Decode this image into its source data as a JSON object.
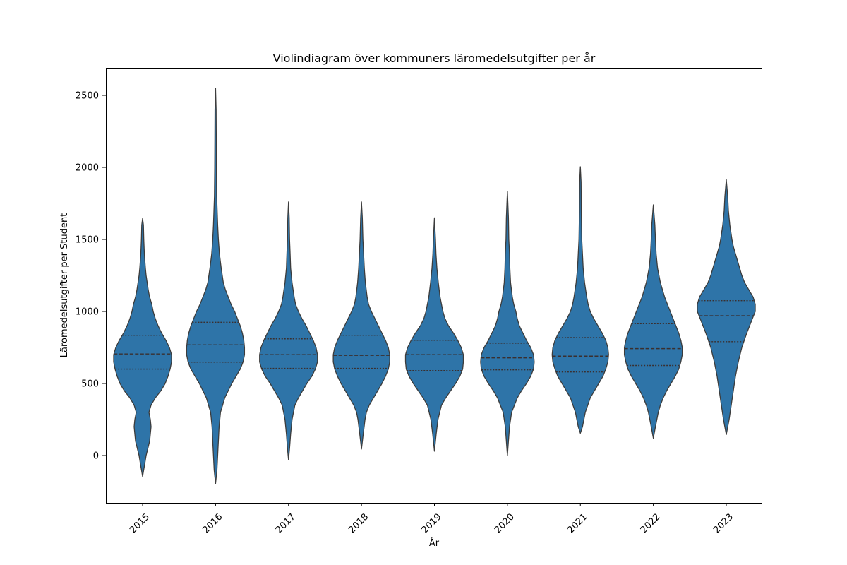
{
  "chart_data": {
    "type": "violin",
    "title": "Violindiagram över kommuners läromedelsutgifter per år",
    "xlabel": "År",
    "ylabel": "Läromedelsutgifter per Student",
    "ylim": [
      -330,
      2690
    ],
    "yticks": [
      "0",
      "500",
      "1000",
      "1500",
      "2000",
      "2500"
    ],
    "ytick_values": [
      0,
      500,
      1000,
      1500,
      2000,
      2500
    ],
    "color": "#2e74a8",
    "grid": false,
    "categories": [
      "2015",
      "2016",
      "2017",
      "2018",
      "2019",
      "2020",
      "2021",
      "2022",
      "2023"
    ],
    "violins": [
      {
        "category": "2015",
        "min": -145,
        "max": 1645,
        "q1": 600,
        "median": 705,
        "q3": 835,
        "profile": [
          [
            -145,
            0
          ],
          [
            -60,
            3
          ],
          [
            0,
            5
          ],
          [
            60,
            8
          ],
          [
            100,
            10
          ],
          [
            150,
            11
          ],
          [
            200,
            12
          ],
          [
            250,
            11
          ],
          [
            300,
            9
          ],
          [
            350,
            12
          ],
          [
            400,
            18
          ],
          [
            450,
            26
          ],
          [
            500,
            32
          ],
          [
            550,
            36
          ],
          [
            600,
            39
          ],
          [
            650,
            41
          ],
          [
            700,
            41
          ],
          [
            750,
            38
          ],
          [
            800,
            33
          ],
          [
            850,
            27
          ],
          [
            900,
            22
          ],
          [
            950,
            18
          ],
          [
            1000,
            15
          ],
          [
            1050,
            13
          ],
          [
            1100,
            10
          ],
          [
            1150,
            8
          ],
          [
            1200,
            6.5
          ],
          [
            1250,
            5
          ],
          [
            1300,
            4
          ],
          [
            1400,
            2.5
          ],
          [
            1500,
            1.7
          ],
          [
            1600,
            1.2
          ],
          [
            1645,
            0
          ]
        ]
      },
      {
        "category": "2016",
        "min": -195,
        "max": 2550,
        "q1": 648,
        "median": 768,
        "q3": 925,
        "profile": [
          [
            -195,
            0
          ],
          [
            -100,
            2
          ],
          [
            0,
            3
          ],
          [
            100,
            4
          ],
          [
            200,
            5
          ],
          [
            300,
            7
          ],
          [
            400,
            13
          ],
          [
            500,
            23
          ],
          [
            550,
            29
          ],
          [
            600,
            35
          ],
          [
            650,
            39
          ],
          [
            700,
            41
          ],
          [
            750,
            41
          ],
          [
            800,
            40
          ],
          [
            850,
            38
          ],
          [
            900,
            35
          ],
          [
            950,
            31
          ],
          [
            1000,
            27
          ],
          [
            1050,
            22
          ],
          [
            1100,
            18
          ],
          [
            1150,
            14
          ],
          [
            1200,
            11
          ],
          [
            1300,
            8
          ],
          [
            1400,
            5.5
          ],
          [
            1500,
            4
          ],
          [
            1600,
            3
          ],
          [
            1700,
            2.3
          ],
          [
            1800,
            1.6
          ],
          [
            2000,
            1.2
          ],
          [
            2200,
            1
          ],
          [
            2400,
            0.8
          ],
          [
            2550,
            0
          ]
        ]
      },
      {
        "category": "2017",
        "min": -30,
        "max": 1760,
        "q1": 605,
        "median": 700,
        "q3": 810,
        "profile": [
          [
            -30,
            0
          ],
          [
            50,
            1.5
          ],
          [
            150,
            3
          ],
          [
            250,
            5
          ],
          [
            350,
            9
          ],
          [
            400,
            14
          ],
          [
            450,
            20
          ],
          [
            500,
            26
          ],
          [
            550,
            33
          ],
          [
            600,
            38
          ],
          [
            650,
            41
          ],
          [
            700,
            41
          ],
          [
            750,
            39
          ],
          [
            800,
            35
          ],
          [
            850,
            30
          ],
          [
            900,
            25
          ],
          [
            950,
            19
          ],
          [
            1000,
            14
          ],
          [
            1050,
            10
          ],
          [
            1100,
            8
          ],
          [
            1150,
            6.5
          ],
          [
            1200,
            5
          ],
          [
            1300,
            3
          ],
          [
            1400,
            2.3
          ],
          [
            1500,
            1.5
          ],
          [
            1650,
            1
          ],
          [
            1760,
            0
          ]
        ]
      },
      {
        "category": "2018",
        "min": 45,
        "max": 1760,
        "q1": 605,
        "median": 695,
        "q3": 835,
        "profile": [
          [
            45,
            0
          ],
          [
            150,
            2.5
          ],
          [
            250,
            5
          ],
          [
            300,
            7
          ],
          [
            350,
            11
          ],
          [
            400,
            17
          ],
          [
            450,
            23
          ],
          [
            500,
            29
          ],
          [
            550,
            34
          ],
          [
            600,
            38
          ],
          [
            650,
            40
          ],
          [
            700,
            40
          ],
          [
            750,
            38
          ],
          [
            800,
            34
          ],
          [
            850,
            29
          ],
          [
            900,
            24
          ],
          [
            950,
            19
          ],
          [
            1000,
            14
          ],
          [
            1050,
            10
          ],
          [
            1100,
            8
          ],
          [
            1200,
            5.5
          ],
          [
            1300,
            4
          ],
          [
            1400,
            3
          ],
          [
            1500,
            2
          ],
          [
            1650,
            1.2
          ],
          [
            1760,
            0
          ]
        ]
      },
      {
        "category": "2019",
        "min": 30,
        "max": 1650,
        "q1": 590,
        "median": 700,
        "q3": 800,
        "profile": [
          [
            30,
            0
          ],
          [
            150,
            2.5
          ],
          [
            250,
            5
          ],
          [
            350,
            10
          ],
          [
            400,
            16
          ],
          [
            450,
            23
          ],
          [
            500,
            30
          ],
          [
            550,
            36
          ],
          [
            600,
            40
          ],
          [
            650,
            41
          ],
          [
            700,
            41
          ],
          [
            750,
            38
          ],
          [
            800,
            33
          ],
          [
            850,
            27
          ],
          [
            900,
            20
          ],
          [
            950,
            15
          ],
          [
            1000,
            12
          ],
          [
            1100,
            8
          ],
          [
            1200,
            5.5
          ],
          [
            1300,
            3.5
          ],
          [
            1400,
            2.2
          ],
          [
            1500,
            1.5
          ],
          [
            1650,
            0
          ]
        ]
      },
      {
        "category": "2020",
        "min": 0,
        "max": 1835,
        "q1": 595,
        "median": 678,
        "q3": 780,
        "profile": [
          [
            0,
            0
          ],
          [
            100,
            1.5
          ],
          [
            200,
            3
          ],
          [
            300,
            6
          ],
          [
            400,
            14
          ],
          [
            450,
            20
          ],
          [
            500,
            27
          ],
          [
            550,
            33
          ],
          [
            600,
            37
          ],
          [
            650,
            38
          ],
          [
            700,
            37
          ],
          [
            750,
            33
          ],
          [
            800,
            27
          ],
          [
            850,
            22
          ],
          [
            900,
            17
          ],
          [
            950,
            14
          ],
          [
            1000,
            12
          ],
          [
            1050,
            9
          ],
          [
            1100,
            7
          ],
          [
            1200,
            4.5
          ],
          [
            1300,
            3.5
          ],
          [
            1400,
            3
          ],
          [
            1500,
            2
          ],
          [
            1650,
            1.5
          ],
          [
            1835,
            0
          ]
        ]
      },
      {
        "category": "2021",
        "min": 155,
        "max": 2005,
        "q1": 580,
        "median": 690,
        "q3": 818,
        "profile": [
          [
            155,
            0
          ],
          [
            200,
            3
          ],
          [
            300,
            7
          ],
          [
            400,
            14
          ],
          [
            450,
            20
          ],
          [
            500,
            26
          ],
          [
            550,
            32
          ],
          [
            600,
            36
          ],
          [
            650,
            39
          ],
          [
            700,
            40
          ],
          [
            750,
            39
          ],
          [
            800,
            36
          ],
          [
            850,
            31
          ],
          [
            900,
            25
          ],
          [
            950,
            19
          ],
          [
            1000,
            14
          ],
          [
            1050,
            11
          ],
          [
            1100,
            9
          ],
          [
            1200,
            6
          ],
          [
            1300,
            4
          ],
          [
            1400,
            3
          ],
          [
            1500,
            2
          ],
          [
            1700,
            1.3
          ],
          [
            1900,
            1
          ],
          [
            2005,
            0
          ]
        ]
      },
      {
        "category": "2022",
        "min": 120,
        "max": 1740,
        "q1": 625,
        "median": 742,
        "q3": 915,
        "profile": [
          [
            120,
            0
          ],
          [
            200,
            3
          ],
          [
            300,
            7
          ],
          [
            350,
            10
          ],
          [
            400,
            14
          ],
          [
            450,
            19
          ],
          [
            500,
            25
          ],
          [
            550,
            31
          ],
          [
            600,
            36
          ],
          [
            650,
            39
          ],
          [
            700,
            41
          ],
          [
            750,
            41
          ],
          [
            800,
            39
          ],
          [
            850,
            36
          ],
          [
            900,
            32
          ],
          [
            950,
            28
          ],
          [
            1000,
            24
          ],
          [
            1050,
            20
          ],
          [
            1100,
            16
          ],
          [
            1150,
            13
          ],
          [
            1200,
            10
          ],
          [
            1300,
            6
          ],
          [
            1400,
            4
          ],
          [
            1500,
            3
          ],
          [
            1600,
            2.2
          ],
          [
            1740,
            0
          ]
        ]
      },
      {
        "category": "2023",
        "min": 145,
        "max": 1915,
        "q1": 790,
        "median": 970,
        "q3": 1075,
        "profile": [
          [
            145,
            0
          ],
          [
            250,
            4
          ],
          [
            350,
            7
          ],
          [
            450,
            10
          ],
          [
            550,
            13
          ],
          [
            650,
            17
          ],
          [
            750,
            22
          ],
          [
            850,
            29
          ],
          [
            950,
            37
          ],
          [
            1000,
            41
          ],
          [
            1050,
            41
          ],
          [
            1100,
            38
          ],
          [
            1150,
            32
          ],
          [
            1200,
            26
          ],
          [
            1250,
            22
          ],
          [
            1300,
            19
          ],
          [
            1350,
            16
          ],
          [
            1400,
            13
          ],
          [
            1450,
            10
          ],
          [
            1500,
            8
          ],
          [
            1600,
            5
          ],
          [
            1700,
            3
          ],
          [
            1800,
            2
          ],
          [
            1915,
            0
          ]
        ]
      }
    ]
  }
}
